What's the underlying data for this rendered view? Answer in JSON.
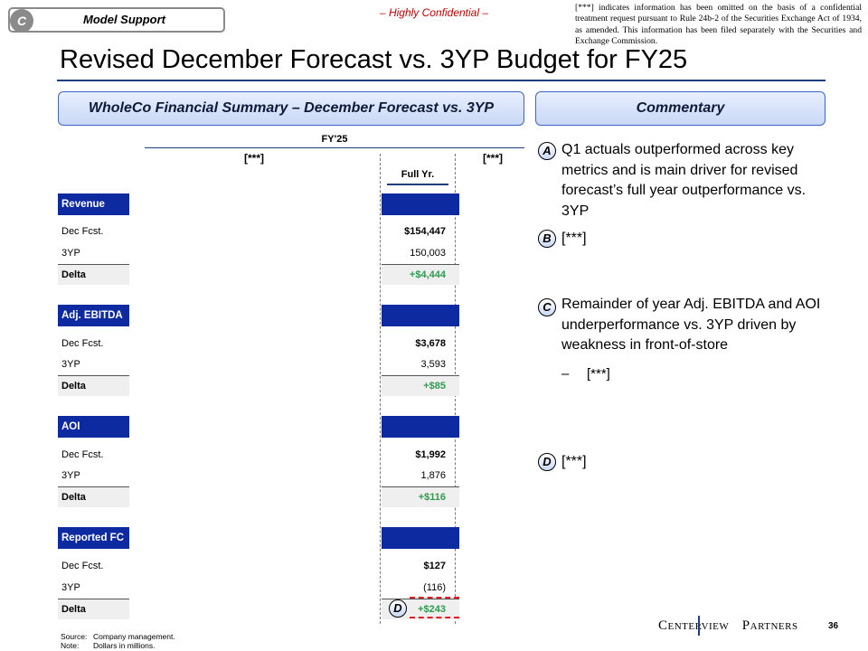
{
  "header": {
    "section_letter": "C",
    "section_label": "Model Support",
    "confidential": "– Highly Confidential –",
    "disclaimer": "[***] indicates information has been omitted on the basis of a confidential treatment request pursuant to Rule 24b-2 of the Securities Exchange Act of 1934, as amended. This information has been filed separately with the Securities and Exchange Commission."
  },
  "title": "Revised December Forecast vs. 3YP Budget for FY25",
  "left_panel": {
    "heading": "WholeCo Financial Summary – December Forecast vs. 3YP",
    "period": "FY'25",
    "omitted_left": "[***]",
    "omitted_right": "[***]",
    "column": "Full Yr.",
    "blocks": [
      {
        "name": "Revenue",
        "rows": [
          {
            "label": "Dec Fcst.",
            "value": "$154,447"
          },
          {
            "label": "3YP",
            "value": "150,003"
          }
        ],
        "delta_label": "Delta",
        "delta": "+$4,444"
      },
      {
        "name": "Adj. EBITDA",
        "rows": [
          {
            "label": "Dec Fcst.",
            "value": "$3,678"
          },
          {
            "label": "3YP",
            "value": "3,593"
          }
        ],
        "delta_label": "Delta",
        "delta": "+$85"
      },
      {
        "name": "AOI",
        "rows": [
          {
            "label": "Dec Fcst.",
            "value": "$1,992"
          },
          {
            "label": "3YP",
            "value": "1,876"
          }
        ],
        "delta_label": "Delta",
        "delta": "+$116"
      },
      {
        "name": "Reported FC",
        "rows": [
          {
            "label": "Dec Fcst.",
            "value": "$127"
          },
          {
            "label": "3YP",
            "value": "(116)"
          }
        ],
        "delta_label": "Delta",
        "delta": "+$243"
      }
    ],
    "marker": "D"
  },
  "commentary": {
    "heading": "Commentary",
    "items": [
      {
        "letter": "A",
        "text": "Q1 actuals outperformed across key metrics and is main driver for revised forecast’s full year outperformance vs. 3YP"
      },
      {
        "letter": "B",
        "text": "[***]"
      },
      {
        "letter": "C",
        "text": "Remainder of year Adj. EBITDA and AOI underperformance vs. 3YP driven by weakness in front-of-store",
        "sub_dash": "–",
        "sub": "[***]"
      },
      {
        "letter": "D",
        "text": "[***]"
      }
    ]
  },
  "footer": {
    "source_key": "Source:",
    "source": "Company management.",
    "note_key": "Note:",
    "note": "Dollars in millions.",
    "brand_left": "Centerview",
    "brand_right": "Partners",
    "page": "36"
  },
  "colors": {
    "navy": "#0d2aa0",
    "delta_green": "#2e9a4e",
    "confidential_red": "#c00000"
  }
}
